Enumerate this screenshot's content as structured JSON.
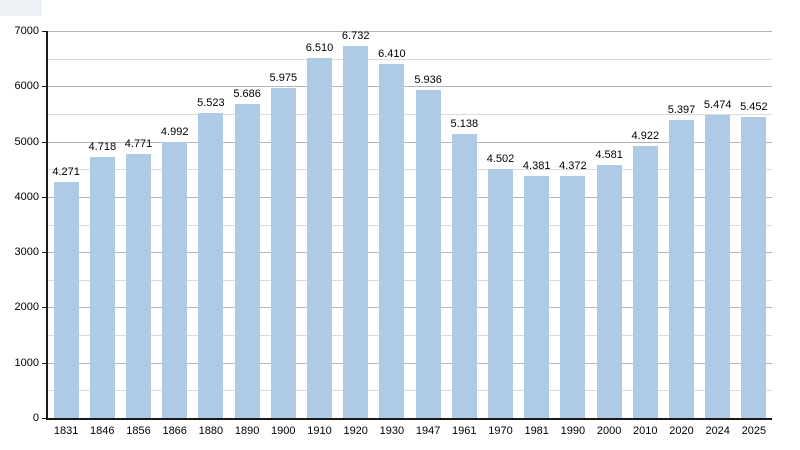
{
  "chart_data": {
    "type": "bar",
    "title": "",
    "xlabel": "",
    "ylabel": "",
    "categories": [
      "1831",
      "1846",
      "1856",
      "1866",
      "1880",
      "1890",
      "1900",
      "1910",
      "1920",
      "1930",
      "1947",
      "1961",
      "1970",
      "1981",
      "1990",
      "2000",
      "2010",
      "2020",
      "2024",
      "2025"
    ],
    "values": [
      4271,
      4718,
      4771,
      4992,
      5523,
      5686,
      5975,
      6510,
      6732,
      6410,
      5936,
      5138,
      4502,
      4381,
      4372,
      4581,
      4922,
      5397,
      5474,
      5452
    ],
    "value_labels": [
      "4.271",
      "4.718",
      "4.771",
      "4.992",
      "5.523",
      "5.686",
      "5.975",
      "6.510",
      "6.732",
      "6.410",
      "5.936",
      "5.138",
      "4.502",
      "4.381",
      "4.372",
      "4.581",
      "4.922",
      "5.397",
      "5.474",
      "5.452"
    ],
    "ylim": [
      0,
      7000
    ],
    "y_major_ticks": [
      0,
      1000,
      2000,
      3000,
      4000,
      5000,
      6000,
      7000
    ],
    "y_major_tick_labels": [
      "0",
      "1000",
      "2000",
      "3000",
      "4000",
      "5000",
      "6000",
      "7000"
    ],
    "y_minor_tick_step": 500,
    "grid": true,
    "legend": "none"
  },
  "colors": {
    "background": "#ffffff",
    "bar_fill": "#aecae5",
    "grid_major": "#b5b5b5",
    "grid_minor": "#dadada",
    "axis": "#1a1a1a",
    "text": "#000000",
    "corner_artifact": "#edf1f5"
  }
}
